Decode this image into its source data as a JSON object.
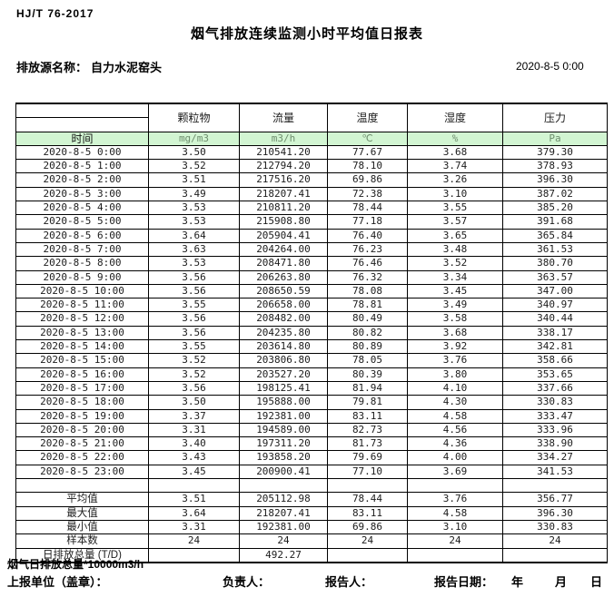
{
  "header": {
    "standard_no": "HJ/T  76-2017",
    "title": "烟气排放连续监测小时平均值日报表",
    "source_label": "排放源名称：",
    "source_name": "自力水泥窑头",
    "report_datetime": "2020-8-5 0:00"
  },
  "table": {
    "time_header": "时间",
    "columns": [
      "颗粒物",
      "流量",
      "温度",
      "湿度",
      "压力"
    ],
    "units": [
      "mg/m3",
      "m3/h",
      "℃",
      "%",
      "Pa"
    ],
    "rows": [
      {
        "time": "2020-8-5 0:00",
        "values": [
          "3.50",
          "210541.20",
          "77.67",
          "3.68",
          "379.30"
        ]
      },
      {
        "time": "2020-8-5 1:00",
        "values": [
          "3.52",
          "212794.20",
          "78.10",
          "3.74",
          "378.93"
        ]
      },
      {
        "time": "2020-8-5 2:00",
        "values": [
          "3.51",
          "217516.20",
          "69.86",
          "3.26",
          "396.30"
        ]
      },
      {
        "time": "2020-8-5 3:00",
        "values": [
          "3.49",
          "218207.41",
          "72.38",
          "3.10",
          "387.02"
        ]
      },
      {
        "time": "2020-8-5 4:00",
        "values": [
          "3.53",
          "210811.20",
          "78.44",
          "3.55",
          "385.20"
        ]
      },
      {
        "time": "2020-8-5 5:00",
        "values": [
          "3.53",
          "215908.80",
          "77.18",
          "3.57",
          "391.68"
        ]
      },
      {
        "time": "2020-8-5 6:00",
        "values": [
          "3.64",
          "205904.41",
          "76.40",
          "3.65",
          "365.84"
        ]
      },
      {
        "time": "2020-8-5 7:00",
        "values": [
          "3.63",
          "204264.00",
          "76.23",
          "3.48",
          "361.53"
        ]
      },
      {
        "time": "2020-8-5 8:00",
        "values": [
          "3.53",
          "208471.80",
          "76.46",
          "3.52",
          "380.70"
        ]
      },
      {
        "time": "2020-8-5 9:00",
        "values": [
          "3.56",
          "206263.80",
          "76.32",
          "3.34",
          "363.57"
        ]
      },
      {
        "time": "2020-8-5 10:00",
        "values": [
          "3.56",
          "208650.59",
          "78.08",
          "3.45",
          "347.00"
        ]
      },
      {
        "time": "2020-8-5 11:00",
        "values": [
          "3.55",
          "206658.00",
          "78.81",
          "3.49",
          "340.97"
        ]
      },
      {
        "time": "2020-8-5 12:00",
        "values": [
          "3.56",
          "208482.00",
          "80.49",
          "3.58",
          "340.44"
        ]
      },
      {
        "time": "2020-8-5 13:00",
        "values": [
          "3.56",
          "204235.80",
          "80.82",
          "3.68",
          "338.17"
        ]
      },
      {
        "time": "2020-8-5 14:00",
        "values": [
          "3.55",
          "203614.80",
          "80.89",
          "3.92",
          "342.81"
        ]
      },
      {
        "time": "2020-8-5 15:00",
        "values": [
          "3.52",
          "203806.80",
          "78.05",
          "3.76",
          "358.66"
        ]
      },
      {
        "time": "2020-8-5 16:00",
        "values": [
          "3.52",
          "203527.20",
          "80.39",
          "3.80",
          "353.65"
        ]
      },
      {
        "time": "2020-8-5 17:00",
        "values": [
          "3.56",
          "198125.41",
          "81.94",
          "4.10",
          "337.66"
        ]
      },
      {
        "time": "2020-8-5 18:00",
        "values": [
          "3.50",
          "195888.00",
          "79.81",
          "4.30",
          "330.83"
        ]
      },
      {
        "time": "2020-8-5 19:00",
        "values": [
          "3.37",
          "192381.00",
          "83.11",
          "4.58",
          "333.47"
        ]
      },
      {
        "time": "2020-8-5 20:00",
        "values": [
          "3.31",
          "194589.00",
          "82.73",
          "4.56",
          "333.96"
        ]
      },
      {
        "time": "2020-8-5 21:00",
        "values": [
          "3.40",
          "197311.20",
          "81.73",
          "4.36",
          "338.90"
        ]
      },
      {
        "time": "2020-8-5 22:00",
        "values": [
          "3.43",
          "193858.20",
          "79.69",
          "4.00",
          "334.27"
        ]
      },
      {
        "time": "2020-8-5 23:00",
        "values": [
          "3.45",
          "200900.41",
          "77.10",
          "3.69",
          "341.53"
        ]
      }
    ],
    "summary": [
      {
        "label": "平均值",
        "values": [
          "3.51",
          "205112.98",
          "78.44",
          "3.76",
          "356.77"
        ]
      },
      {
        "label": "最大值",
        "values": [
          "3.64",
          "218207.41",
          "83.11",
          "4.58",
          "396.30"
        ]
      },
      {
        "label": "最小值",
        "values": [
          "3.31",
          "192381.00",
          "69.86",
          "3.10",
          "330.83"
        ]
      },
      {
        "label": "样本数",
        "values": [
          "24",
          "24",
          "24",
          "24",
          "24"
        ]
      },
      {
        "label": "日排放总量 (T/D)",
        "values": [
          "",
          "492.27",
          "",
          "",
          ""
        ]
      }
    ]
  },
  "footer": {
    "note": "烟气日排放总量*10000m3/h",
    "report_unit_label": "上报单位（盖章）：",
    "responsible_label": "负责人：",
    "reporter_label": "报告人：",
    "report_date_label": "报告日期：",
    "year_label": "年",
    "month_label": "月",
    "day_label": "日"
  },
  "colors": {
    "header_row_green": "#d2f5d2",
    "unit_text_green": "#6e8e6e",
    "border_black": "#000000"
  }
}
